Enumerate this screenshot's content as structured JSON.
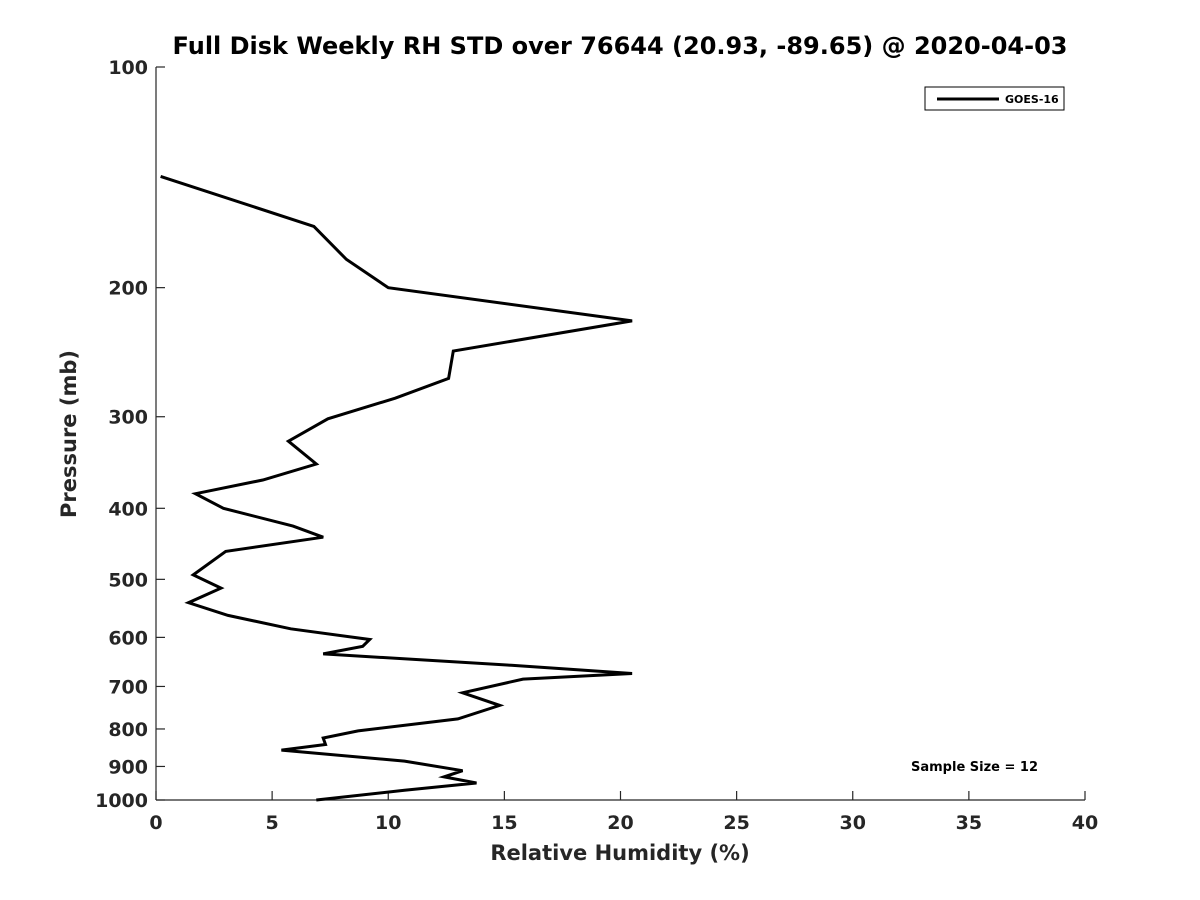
{
  "chart_data": {
    "type": "line",
    "title": "Full Disk Weekly RH STD over 76644 (20.93, -89.65) @ 2020-04-03",
    "xlabel": "Relative Humidity (%)",
    "ylabel": "Pressure (mb)",
    "xlim": [
      0,
      40
    ],
    "ylim": [
      1000,
      100
    ],
    "y_scale": "log",
    "y_reversed": true,
    "grid": false,
    "legend_position": "top-right",
    "x_ticks": [
      0,
      5,
      10,
      15,
      20,
      25,
      30,
      35,
      40
    ],
    "x_tick_labels": [
      "0",
      "5",
      "10",
      "15",
      "20",
      "25",
      "30",
      "35",
      "40"
    ],
    "y_ticks": [
      100,
      200,
      300,
      400,
      500,
      600,
      700,
      800,
      900,
      1000
    ],
    "y_tick_labels": [
      "100",
      "200",
      "300",
      "400",
      "500",
      "600",
      "700",
      "800",
      "900",
      "1000"
    ],
    "series": [
      {
        "name": "GOES-16",
        "color": "#000000",
        "x": [
          0.2,
          6.8,
          8.2,
          10.0,
          20.5,
          12.8,
          12.6,
          10.3,
          7.4,
          5.7,
          6.9,
          4.6,
          1.7,
          2.9,
          5.9,
          7.2,
          3.0,
          1.6,
          2.8,
          1.4,
          3.1,
          5.8,
          9.2,
          8.9,
          7.2,
          15.3,
          20.5,
          15.8,
          13.2,
          14.8,
          13.0,
          8.7,
          7.2,
          7.3,
          5.4,
          10.7,
          13.2,
          12.4,
          13.8,
          10.7,
          6.9
        ],
        "y": [
          141,
          165,
          183,
          200,
          222,
          244,
          266,
          283,
          302,
          324,
          348,
          366,
          382,
          400,
          423,
          438,
          458,
          493,
          514,
          538,
          560,
          584,
          604,
          617,
          632,
          655,
          672,
          684,
          714,
          743,
          775,
          805,
          823,
          840,
          855,
          885,
          912,
          930,
          948,
          970,
          1000
        ]
      }
    ],
    "annotations": [
      "Sample Size = 12"
    ]
  }
}
